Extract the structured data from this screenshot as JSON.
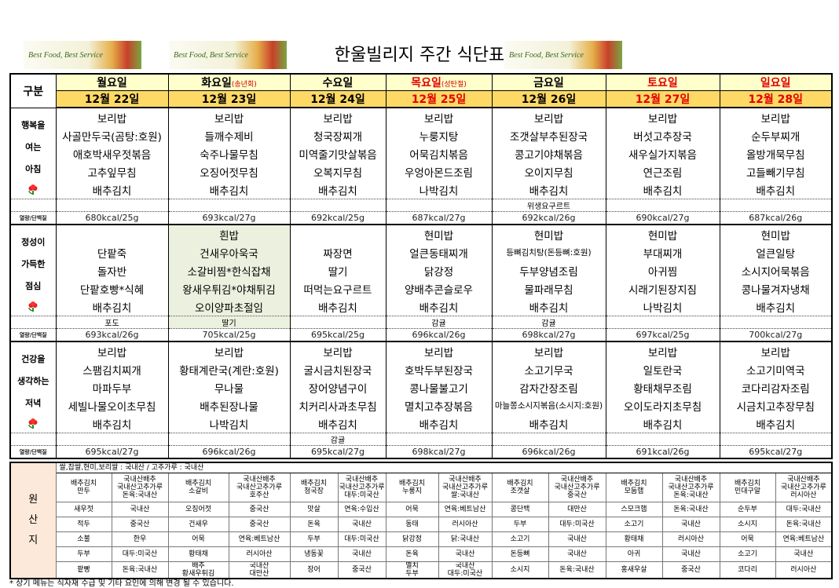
{
  "header": {
    "title": "한울빌리지 주간 식단표",
    "banner": "Best Food, Best Service"
  },
  "table": {
    "corner": "구분",
    "days": [
      {
        "name": "월요일",
        "note": null,
        "date": "12월 22일",
        "color": "#000000",
        "date_color": "#000000"
      },
      {
        "name": "화요일",
        "note": "(송년회)",
        "date": "12월 23일",
        "color": "#000000",
        "date_color": "#000000"
      },
      {
        "name": "수요일",
        "note": null,
        "date": "12월 24일",
        "color": "#000000",
        "date_color": "#000000"
      },
      {
        "name": "목요일",
        "note": "(성탄절)",
        "date": "12월 25일",
        "color": "#e00000",
        "date_color": "#e00000"
      },
      {
        "name": "금요일",
        "note": null,
        "date": "12월 26일",
        "color": "#000000",
        "date_color": "#000000"
      },
      {
        "name": "토요일",
        "note": null,
        "date": "12월 27일",
        "color": "#e00000",
        "date_color": "#e00000"
      },
      {
        "name": "일요일",
        "note": null,
        "date": "12월 28일",
        "color": "#e00000",
        "date_color": "#e00000"
      }
    ],
    "meals": [
      {
        "label": [
          "행복을",
          "여는",
          "아침"
        ],
        "highlight": null,
        "items": [
          [
            "보리밥",
            "사골만두국(곰탕:호원)",
            "애호박새우젓볶음",
            "고추잎무침",
            "배추김치"
          ],
          [
            "보리밥",
            "들깨수제비",
            "숙주나물무침",
            "오징어젓무침",
            "배추김치"
          ],
          [
            "보리밥",
            "청국장찌개",
            "미역줄기맛살볶음",
            "오복지무침",
            "배추김치"
          ],
          [
            "보리밥",
            "누룽지탕",
            "어묵김치볶음",
            "우엉아몬드조림",
            "나박김치"
          ],
          [
            "보리밥",
            "조갯살부추된장국",
            "콩고기야채볶음",
            "오이지무침",
            "배추김치"
          ],
          [
            "보리밥",
            "버섯고추장국",
            "새우실가지볶음",
            "연근조림",
            "배추김치"
          ],
          [
            "보리밥",
            "순두부찌개",
            "올방개묵무침",
            "고들빼기무침",
            "배추김치"
          ]
        ],
        "extra": [
          null,
          null,
          null,
          null,
          "위생요구르트",
          null,
          null
        ],
        "kcal_label": "열량/단백질",
        "kcal": [
          "680kcal/25g",
          "693kcal/27g",
          "692kcal/25g",
          "687kcal/27g",
          "692kcal/26g",
          "690kcal/27g",
          "687kcal/26g"
        ]
      },
      {
        "label": [
          "정성이",
          "가득한",
          "점심"
        ],
        "highlight": {
          "day": 1,
          "color": "#ebf1de"
        },
        "items": [
          [
            null,
            "단팥죽",
            "돌자반",
            "단팥호빵*식혜",
            "배추김치"
          ],
          [
            "흰밥",
            "건새우아욱국",
            "소갈비찜*한식잡채",
            "왕새우튀김*야채튀김",
            "오이양파초절임"
          ],
          [
            null,
            "짜장면",
            "딸기",
            "떠먹는요구르트",
            "배추김치"
          ],
          [
            "현미밥",
            "얼큰동태찌개",
            "닭강정",
            "양배추콘슬로우",
            "배추김치"
          ],
          [
            "현미밥",
            "등뼈김치탕(돈등뼈:호원)",
            "두부양념조림",
            "물파래무침",
            "배추김치"
          ],
          [
            "현미밥",
            "부대찌개",
            "아귀찜",
            "시래기된장지짐",
            "나박김치"
          ],
          [
            "현미밥",
            "얼큰일탕",
            "소시지어묵볶음",
            "콩나물겨자냉채",
            "배추김치"
          ]
        ],
        "extra": [
          "포도",
          "딸기",
          null,
          "감귤",
          "감귤",
          null,
          null
        ],
        "kcal_label": "열량/단백질",
        "kcal": [
          "693kcal/26g",
          "705kcal/25g",
          "695kcal/25g",
          "696kcal/26g",
          "698kcal/27g",
          "697kcal/25g",
          "700kcal/27g"
        ]
      },
      {
        "label": [
          "건강을",
          "생각하는",
          "저녁"
        ],
        "highlight": null,
        "items": [
          [
            "보리밥",
            "스팸김치찌개",
            "마파두부",
            "세빌나물오이초무침",
            "배추김치"
          ],
          [
            "보리밥",
            "황태계란국(계란:호원)",
            "무나물",
            "배추된장나물",
            "나박김치"
          ],
          [
            "보리밥",
            "굴시금치된장국",
            "장어양념구이",
            "치커리사과초무침",
            "배추김치"
          ],
          [
            "보리밥",
            "호박두부된장국",
            "콩나물불고기",
            "멸치고추장볶음",
            "배추김치"
          ],
          [
            "보리밥",
            "소고기무국",
            "감자간장조림",
            "마늘쫑소시지볶음(소시지:호원)",
            "배추김치"
          ],
          [
            "보리밥",
            "일토란국",
            "황태채무조림",
            "오이도라지초무침",
            "배추김치"
          ],
          [
            "보리밥",
            "소고기미역국",
            "코다리감자조림",
            "시금치고추장무침",
            "배추김치"
          ]
        ],
        "extra": [
          null,
          null,
          "감귤",
          null,
          null,
          null,
          null
        ],
        "kcal_label": "열량/단백질",
        "kcal": [
          "695kcal/27g",
          "696kcal/26g",
          "695kcal/27g",
          "698kcal/27g",
          "696kcal/26g",
          "691kcal/26g",
          "695kcal/27g"
        ]
      }
    ]
  },
  "origin": {
    "label": "원\n산\n지",
    "note": "쌀,찹쌀,현미,보리쌀 : 국내산 / 고추가루 : 국내산",
    "rows": [
      [
        "배추김치\n만두",
        "국내산배추\n국내산고추가루\n돈육:국내산",
        "배추김치\n소갈비",
        "국내산배추\n국내산고추가루\n호주산",
        "배추김치\n청국장",
        "국내산배추\n국내산고추가루\n대두:미국산",
        "배추김치\n누룽지",
        "국내산배추\n국내산고추가루\n쌀:국내산",
        "배추김치\n조갯살",
        "국내산배추\n국내산고추가루\n중국산",
        "배추김치\n모둠햄",
        "국내산배추\n국내산고추가루\n돈육:국내산",
        "배추김치\n민대구알",
        "국내산배추\n국내산고추가루\n러시아산"
      ],
      [
        "새우젓",
        "국내산",
        "오징어젓",
        "중국산",
        "맛살",
        "연육:수입산",
        "어묵",
        "연육:베트남산",
        "콩단백",
        "대만산",
        "스모크햄",
        "돈육:국내산",
        "순두부",
        "대두:국내산"
      ],
      [
        "적두",
        "중국산",
        "건새우",
        "중국산",
        "돈육",
        "국내산",
        "동태",
        "러시아산",
        "두부",
        "대두:미국산",
        "소고기",
        "국내산",
        "소시지",
        "돈육:국내산"
      ],
      [
        "소불",
        "한우",
        "어묵",
        "연육:베트남산",
        "두부",
        "대두:미국산",
        "닭강정",
        "닭:국내산",
        "소고기",
        "국내산",
        "황태채",
        "러시아산",
        "어묵",
        "연육:베트남산"
      ],
      [
        "두부",
        "대두:미국산",
        "황태채",
        "러시아산",
        "냉동꽃",
        "국내산",
        "돈육",
        "국내산",
        "돈등뼈",
        "국내산",
        "아귀",
        "국내산",
        "소고기",
        "국내산"
      ],
      [
        "팥빵",
        "돈육:국내산",
        "배추\n황새우튀김",
        "국내산\n대만산",
        "장어",
        "중국산",
        "멸치\n두부",
        "국내산\n대두:미국산",
        "소시지",
        "돈육:국내산",
        "홍새우살",
        "중국산",
        "코다리",
        "러시아산"
      ]
    ]
  },
  "footnote": "* 상기 메뉴는 식자재 수급 및 기타 요인에 의해 변경 될 수 있습니다."
}
